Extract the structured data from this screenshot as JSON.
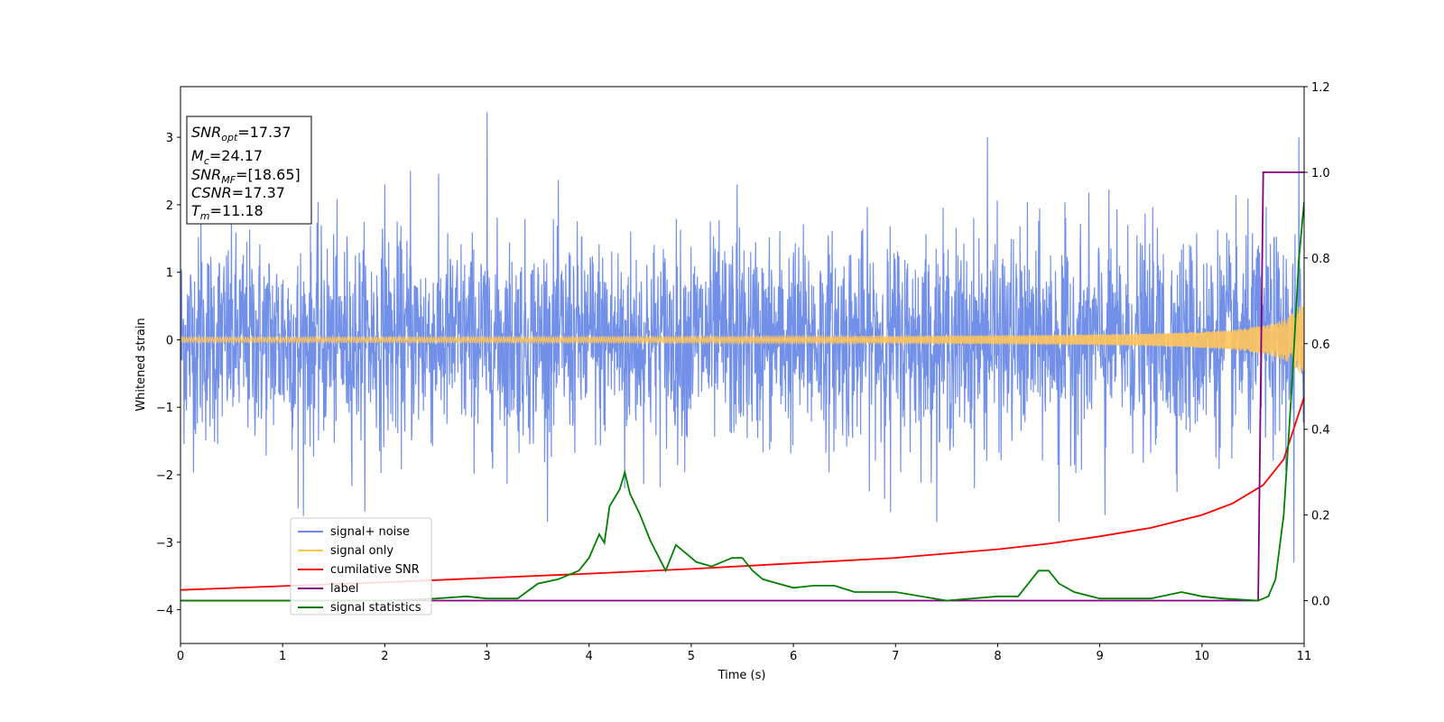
{
  "chart_data": {
    "type": "line",
    "xlabel": "Time (s)",
    "ylabel": "Whitened strain",
    "xlim": [
      0,
      11
    ],
    "ylim": [
      -4.5,
      3.75
    ],
    "y2lim": [
      -0.1,
      1.2
    ],
    "xticks": [
      "0",
      "1",
      "2",
      "3",
      "4",
      "5",
      "6",
      "7",
      "8",
      "9",
      "10",
      "11"
    ],
    "yticks": [
      {
        "value": -4,
        "label": "−4"
      },
      {
        "value": -3,
        "label": "−3"
      },
      {
        "value": -2,
        "label": "−2"
      },
      {
        "value": -1,
        "label": "−1"
      },
      {
        "value": 0,
        "label": "0"
      },
      {
        "value": 1,
        "label": "1"
      },
      {
        "value": 2,
        "label": "2"
      },
      {
        "value": 3,
        "label": "3"
      }
    ],
    "y2ticks": [
      "0.0",
      "0.2",
      "0.4",
      "0.6",
      "0.8",
      "1.0",
      "1.2"
    ],
    "legend_position": "lower-left",
    "info_box": [
      {
        "name": "SNR",
        "sub": "opt",
        "value": "=17.37"
      },
      {
        "name": "M",
        "sub": "c",
        "value": "=24.17"
      },
      {
        "name": "SNR",
        "sub": "MF",
        "value": "=[18.65]"
      },
      {
        "name": "CSNR",
        "sub": "",
        "value": "=17.37"
      },
      {
        "name": "T",
        "sub": "m",
        "value": "=11.18"
      }
    ],
    "series": [
      {
        "name": "signal+ noise",
        "color": "#6a8ae6",
        "axis": "left",
        "kind": "noise",
        "std": 0.75,
        "spikes": [
          [
            0.2,
            1.9
          ],
          [
            1.15,
            -2.5
          ],
          [
            2.0,
            2.3
          ],
          [
            2.25,
            2.5
          ],
          [
            3.0,
            3.37
          ],
          [
            4.35,
            -2.2
          ],
          [
            5.45,
            2.3
          ],
          [
            6.95,
            -2.55
          ],
          [
            7.9,
            3.0
          ],
          [
            8.6,
            -2.7
          ],
          [
            9.05,
            -2.6
          ],
          [
            10.9,
            -3.3
          ],
          [
            10.95,
            3.0
          ]
        ]
      },
      {
        "name": "signal only",
        "color": "#ffc55a",
        "axis": "left",
        "kind": "chirp",
        "amplitude_start": 0.03,
        "amplitude_end": 0.5
      },
      {
        "name": "cumilative SNR",
        "color": "#ff0000",
        "axis": "right",
        "x": [
          0,
          1,
          2,
          3,
          4,
          5,
          6,
          7,
          8,
          8.5,
          9,
          9.5,
          10,
          10.3,
          10.6,
          10.8,
          11
        ],
        "y": [
          0.025,
          0.034,
          0.043,
          0.053,
          0.063,
          0.074,
          0.087,
          0.1,
          0.12,
          0.133,
          0.15,
          0.17,
          0.2,
          0.227,
          0.27,
          0.33,
          0.475
        ]
      },
      {
        "name": "label",
        "color": "#800080",
        "axis": "right",
        "x": [
          0,
          10.55,
          10.6,
          11
        ],
        "y": [
          0,
          0,
          1,
          1
        ]
      },
      {
        "name": "signal statistics",
        "color": "#008000",
        "axis": "right",
        "x": [
          0,
          1,
          2,
          2.5,
          2.8,
          3.0,
          3.3,
          3.5,
          3.7,
          3.9,
          4.0,
          4.1,
          4.15,
          4.2,
          4.3,
          4.35,
          4.4,
          4.5,
          4.6,
          4.75,
          4.85,
          4.95,
          5.05,
          5.2,
          5.4,
          5.5,
          5.6,
          5.7,
          5.85,
          6.0,
          6.2,
          6.4,
          6.6,
          7.0,
          7.5,
          8.0,
          8.2,
          8.3,
          8.4,
          8.5,
          8.6,
          8.75,
          9.0,
          9.5,
          9.8,
          10.0,
          10.2,
          10.55,
          10.65,
          10.72,
          10.8,
          10.88,
          10.95,
          11
        ],
        "y": [
          0,
          0,
          0.0,
          0.005,
          0.01,
          0.005,
          0.005,
          0.04,
          0.05,
          0.07,
          0.1,
          0.155,
          0.135,
          0.22,
          0.26,
          0.3,
          0.25,
          0.2,
          0.14,
          0.07,
          0.13,
          0.11,
          0.09,
          0.08,
          0.1,
          0.1,
          0.07,
          0.05,
          0.04,
          0.03,
          0.035,
          0.035,
          0.02,
          0.02,
          0.0,
          0.01,
          0.01,
          0.04,
          0.07,
          0.07,
          0.04,
          0.02,
          0.005,
          0.005,
          0.02,
          0.01,
          0.005,
          0.0,
          0.01,
          0.05,
          0.2,
          0.5,
          0.8,
          0.93
        ]
      }
    ]
  }
}
